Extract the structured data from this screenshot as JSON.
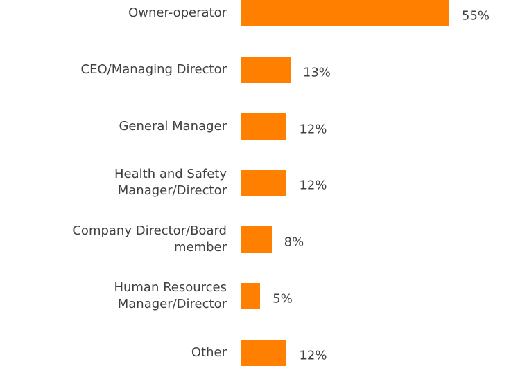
{
  "chart_data": {
    "type": "hbar",
    "categories": [
      "Owner-operator",
      "CEO/Managing Director",
      "General Manager",
      "Health and Safety\nManager/Director",
      "Company Director/Board\nmember",
      "Human Resources\nManager/Director",
      "Other"
    ],
    "values": [
      55,
      13,
      12,
      12,
      8,
      5,
      12
    ],
    "value_labels": [
      "55%",
      "13%",
      "12%",
      "12%",
      "8%",
      "5%",
      "12%"
    ],
    "color": "#ff8000"
  }
}
